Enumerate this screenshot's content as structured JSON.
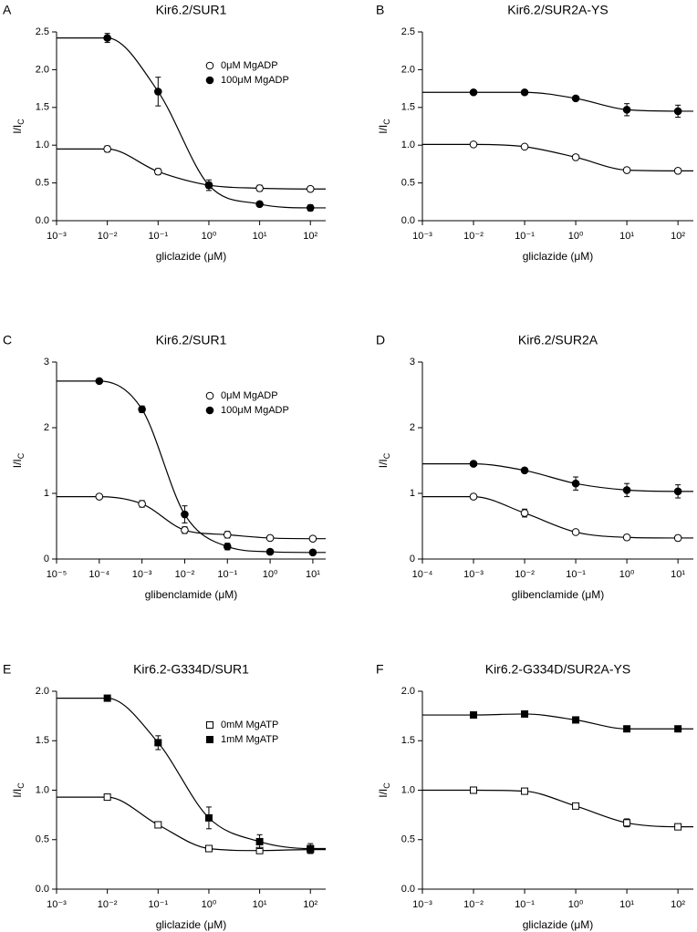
{
  "chart_data": [
    {
      "type": "scatter",
      "panel": "A",
      "title": "Kir6.2/SUR1",
      "x_label": "gliclazide (μM)",
      "y_label": {
        "text": "I/I",
        "subscript": "C"
      },
      "xscale": "log",
      "xlim": [
        0.001,
        200
      ],
      "xticks": [
        {
          "value": 0.001,
          "label": "10⁻³"
        },
        {
          "value": 0.01,
          "label": "10⁻²"
        },
        {
          "value": 0.1,
          "label": "10⁻¹"
        },
        {
          "value": 1,
          "label": "10⁰"
        },
        {
          "value": 10,
          "label": "10¹"
        },
        {
          "value": 100,
          "label": "10²"
        }
      ],
      "ylim": [
        0,
        2.5
      ],
      "yticks": [
        {
          "value": 0,
          "label": "0.0"
        },
        {
          "value": 0.5,
          "label": "0.5"
        },
        {
          "value": 1,
          "label": "1.0"
        },
        {
          "value": 1.5,
          "label": "1.5"
        },
        {
          "value": 2,
          "label": "2.0"
        },
        {
          "value": 2.5,
          "label": "2.5"
        }
      ],
      "legend": "upper right",
      "x": [
        0.01,
        0.1,
        1,
        10,
        100
      ],
      "series": [
        {
          "name": "0μM MgADP",
          "marker": "circle",
          "color": "#000",
          "marker_fill": "#fff",
          "values": [
            0.95,
            0.65,
            0.47,
            0.43,
            0.42
          ],
          "errors": [
            0.04,
            0.04,
            0.04,
            0.04,
            0.03
          ]
        },
        {
          "name": "100μM MgADP",
          "marker": "circle",
          "color": "#000",
          "marker_fill": "#000",
          "values": [
            2.42,
            1.71,
            0.47,
            0.22,
            0.17
          ],
          "errors": [
            0.06,
            0.19,
            0.07,
            0.02,
            0.04
          ]
        }
      ]
    },
    {
      "type": "scatter",
      "panel": "B",
      "title": "Kir6.2/SUR2A-YS",
      "x_label": "gliclazide (μM)",
      "y_label": {
        "text": "I/I",
        "subscript": "C"
      },
      "xscale": "log",
      "xlim": [
        0.001,
        200
      ],
      "xticks": [
        {
          "value": 0.001,
          "label": "10⁻³"
        },
        {
          "value": 0.01,
          "label": "10⁻²"
        },
        {
          "value": 0.1,
          "label": "10⁻¹"
        },
        {
          "value": 1,
          "label": "10⁰"
        },
        {
          "value": 10,
          "label": "10¹"
        },
        {
          "value": 100,
          "label": "10²"
        }
      ],
      "ylim": [
        0,
        2.5
      ],
      "yticks": [
        {
          "value": 0,
          "label": "0.0"
        },
        {
          "value": 0.5,
          "label": "0.5"
        },
        {
          "value": 1,
          "label": "1.0"
        },
        {
          "value": 1.5,
          "label": "1.5"
        },
        {
          "value": 2,
          "label": "2.0"
        },
        {
          "value": 2.5,
          "label": "2.5"
        }
      ],
      "x": [
        0.01,
        0.1,
        1,
        10,
        100
      ],
      "series": [
        {
          "marker": "circle",
          "color": "#000",
          "marker_fill": "#fff",
          "values": [
            1.01,
            0.98,
            0.84,
            0.67,
            0.66
          ],
          "errors": [
            0.02,
            0.02,
            0.02,
            0.03,
            0.03
          ]
        },
        {
          "marker": "circle",
          "color": "#000",
          "marker_fill": "#000",
          "values": [
            1.7,
            1.7,
            1.62,
            1.47,
            1.45
          ],
          "errors": [
            0.02,
            0.02,
            0.02,
            0.08,
            0.08
          ]
        }
      ]
    },
    {
      "type": "scatter",
      "panel": "C",
      "title": "Kir6.2/SUR1",
      "x_label": "glibenclamide (μM)",
      "y_label": {
        "text": "I/I",
        "subscript": "C"
      },
      "xscale": "log",
      "xlim": [
        1e-05,
        20
      ],
      "xticks": [
        {
          "value": 1e-05,
          "label": "10⁻⁵"
        },
        {
          "value": 0.0001,
          "label": "10⁻⁴"
        },
        {
          "value": 0.001,
          "label": "10⁻³"
        },
        {
          "value": 0.01,
          "label": "10⁻²"
        },
        {
          "value": 0.1,
          "label": "10⁻¹"
        },
        {
          "value": 1,
          "label": "10⁰"
        },
        {
          "value": 10,
          "label": "10¹"
        }
      ],
      "ylim": [
        0,
        3
      ],
      "yticks": [
        0,
        1,
        2,
        3
      ],
      "legend": "upper right",
      "x": [
        0.0001,
        0.001,
        0.01,
        0.1,
        1,
        10
      ],
      "series": [
        {
          "name": "0μM MgADP",
          "marker": "circle",
          "color": "#000",
          "marker_fill": "#fff",
          "values": [
            0.95,
            0.84,
            0.44,
            0.37,
            0.32,
            0.31
          ],
          "errors": [
            0.02,
            0.05,
            0.05,
            0.05,
            0.03,
            0.03
          ]
        },
        {
          "name": "100μM MgADP",
          "marker": "circle",
          "color": "#000",
          "marker_fill": "#000",
          "values": [
            2.71,
            2.28,
            0.68,
            0.19,
            0.11,
            0.1
          ],
          "errors": [
            0.02,
            0.05,
            0.13,
            0.05,
            0.02,
            0.02
          ]
        }
      ]
    },
    {
      "type": "scatter",
      "panel": "D",
      "title": "Kir6.2/SUR2A",
      "x_label": "glibenclamide (μM)",
      "y_label": {
        "text": "I/I",
        "subscript": "C"
      },
      "xscale": "log",
      "xlim": [
        0.0001,
        20
      ],
      "xticks": [
        {
          "value": 0.0001,
          "label": "10⁻⁴"
        },
        {
          "value": 0.001,
          "label": "10⁻³"
        },
        {
          "value": 0.01,
          "label": "10⁻²"
        },
        {
          "value": 0.1,
          "label": "10⁻¹"
        },
        {
          "value": 1,
          "label": "10⁰"
        },
        {
          "value": 10,
          "label": "10¹"
        }
      ],
      "ylim": [
        0,
        3
      ],
      "yticks": [
        0,
        1,
        2,
        3
      ],
      "x": [
        0.001,
        0.01,
        0.1,
        1,
        10
      ],
      "series": [
        {
          "marker": "circle",
          "color": "#000",
          "marker_fill": "#fff",
          "values": [
            0.95,
            0.7,
            0.41,
            0.33,
            0.32
          ],
          "errors": [
            0.03,
            0.06,
            0.03,
            0.04,
            0.04
          ]
        },
        {
          "marker": "circle",
          "color": "#000",
          "marker_fill": "#000",
          "values": [
            1.45,
            1.35,
            1.15,
            1.05,
            1.03
          ],
          "errors": [
            0.03,
            0.03,
            0.1,
            0.1,
            0.1
          ]
        }
      ]
    },
    {
      "type": "scatter",
      "panel": "E",
      "title": "Kir6.2-G334D/SUR1",
      "x_label": "gliclazide (μM)",
      "y_label": {
        "text": "I/I",
        "subscript": "C"
      },
      "xscale": "log",
      "xlim": [
        0.001,
        200
      ],
      "xticks": [
        {
          "value": 0.001,
          "label": "10⁻³"
        },
        {
          "value": 0.01,
          "label": "10⁻²"
        },
        {
          "value": 0.1,
          "label": "10⁻¹"
        },
        {
          "value": 1,
          "label": "10⁰"
        },
        {
          "value": 10,
          "label": "10¹"
        },
        {
          "value": 100,
          "label": "10²"
        }
      ],
      "ylim": [
        0,
        2
      ],
      "yticks": [
        {
          "value": 0,
          "label": "0.0"
        },
        {
          "value": 0.5,
          "label": "0.5"
        },
        {
          "value": 1,
          "label": "1.0"
        },
        {
          "value": 1.5,
          "label": "1.5"
        },
        {
          "value": 2,
          "label": "2.0"
        }
      ],
      "legend": "upper right",
      "x": [
        0.01,
        0.1,
        1,
        10,
        100
      ],
      "series": [
        {
          "name": "0mM MgATP",
          "marker": "square",
          "color": "#000",
          "marker_fill": "#fff",
          "values": [
            0.93,
            0.65,
            0.41,
            0.39,
            0.4
          ],
          "errors": [
            0.01,
            0.01,
            0.01,
            0.02,
            0.03
          ]
        },
        {
          "name": "1mM MgATP",
          "marker": "square",
          "color": "#000",
          "marker_fill": "#000",
          "values": [
            1.93,
            1.48,
            0.72,
            0.48,
            0.41
          ],
          "errors": [
            0.02,
            0.07,
            0.11,
            0.07,
            0.05
          ]
        }
      ]
    },
    {
      "type": "scatter",
      "panel": "F",
      "title": "Kir6.2-G334D/SUR2A-YS",
      "x_label": "gliclazide (μM)",
      "y_label": {
        "text": "I/I",
        "subscript": "C"
      },
      "xscale": "log",
      "xlim": [
        0.001,
        200
      ],
      "xticks": [
        {
          "value": 0.001,
          "label": "10⁻³"
        },
        {
          "value": 0.01,
          "label": "10⁻²"
        },
        {
          "value": 0.1,
          "label": "10⁻¹"
        },
        {
          "value": 1,
          "label": "10⁰"
        },
        {
          "value": 10,
          "label": "10¹"
        },
        {
          "value": 100,
          "label": "10²"
        }
      ],
      "ylim": [
        0,
        2
      ],
      "yticks": [
        {
          "value": 0,
          "label": "0.0"
        },
        {
          "value": 0.5,
          "label": "0.5"
        },
        {
          "value": 1,
          "label": "1.0"
        },
        {
          "value": 1.5,
          "label": "1.5"
        },
        {
          "value": 2,
          "label": "2.0"
        }
      ],
      "x": [
        0.01,
        0.1,
        1,
        10,
        100
      ],
      "series": [
        {
          "marker": "square",
          "color": "#000",
          "marker_fill": "#fff",
          "values": [
            1.0,
            0.99,
            0.84,
            0.67,
            0.63
          ],
          "errors": [
            0.01,
            0.01,
            0.02,
            0.04,
            0.03
          ]
        },
        {
          "marker": "square",
          "color": "#000",
          "marker_fill": "#000",
          "values": [
            1.76,
            1.77,
            1.71,
            1.62,
            1.62
          ],
          "errors": [
            0.01,
            0.01,
            0.01,
            0.01,
            0.01
          ]
        }
      ]
    }
  ]
}
